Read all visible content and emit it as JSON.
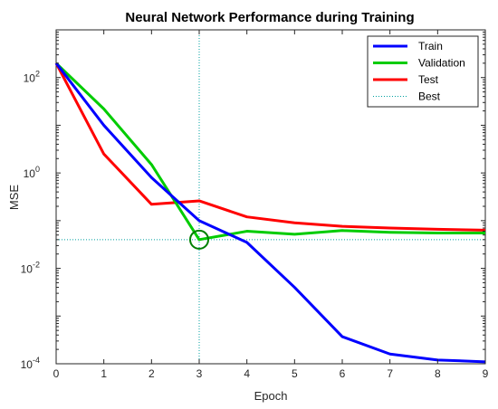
{
  "chart_data": {
    "type": "line",
    "title": "Neural Network Performance during Training",
    "xlabel": "Epoch",
    "ylabel": "MSE",
    "xlim": [
      0,
      9
    ],
    "ylim": [
      0.0001,
      1000
    ],
    "yscale": "log",
    "grid": false,
    "legend_position": "top-right",
    "x_ticks": [
      "0",
      "1",
      "2",
      "3",
      "4",
      "5",
      "6",
      "7",
      "8",
      "9"
    ],
    "y_ticks": [
      {
        "value": 0.0001,
        "base": "10",
        "exp": "-4"
      },
      {
        "value": 0.01,
        "base": "10",
        "exp": "-2"
      },
      {
        "value": 1,
        "base": "10",
        "exp": "0"
      },
      {
        "value": 100,
        "base": "10",
        "exp": "2"
      }
    ],
    "x": [
      0,
      1,
      2,
      3,
      4,
      5,
      6,
      7,
      8,
      9
    ],
    "series": [
      {
        "name": "Train",
        "color": "#0000ff",
        "values": [
          200,
          10,
          0.8,
          0.1,
          0.035,
          0.004,
          0.00037,
          0.00016,
          0.00012,
          0.00011
        ]
      },
      {
        "name": "Validation",
        "color": "#00cc00",
        "values": [
          200,
          22,
          1.5,
          0.04,
          0.06,
          0.052,
          0.062,
          0.057,
          0.055,
          0.055
        ]
      },
      {
        "name": "Test",
        "color": "#ff0000",
        "values": [
          200,
          2.5,
          0.22,
          0.26,
          0.12,
          0.09,
          0.076,
          0.07,
          0.066,
          0.063
        ]
      },
      {
        "name": "Best",
        "color": "#00a0a0",
        "style": "dotted",
        "best_epoch": 3,
        "best_value": 0.04
      }
    ]
  }
}
